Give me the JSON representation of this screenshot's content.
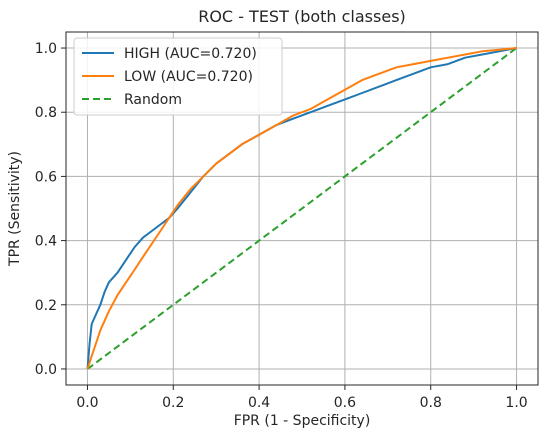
{
  "chart_data": {
    "type": "line",
    "title": "ROC - TEST (both classes)",
    "xlabel": "FPR (1 - Specificity)",
    "ylabel": "TPR (Sensitivity)",
    "xlim": [
      -0.05,
      1.05
    ],
    "ylim": [
      -0.05,
      1.05
    ],
    "xticks": [
      "0.0",
      "0.2",
      "0.4",
      "0.6",
      "0.8",
      "1.0"
    ],
    "yticks": [
      "0.0",
      "0.2",
      "0.4",
      "0.6",
      "0.8",
      "1.0"
    ],
    "grid": true,
    "legend_position": "top-left",
    "series": [
      {
        "name": "HIGH (AUC=0.720)",
        "color": "#1f77b4",
        "style": "solid",
        "x": [
          0,
          0.005,
          0.01,
          0.02,
          0.03,
          0.04,
          0.05,
          0.07,
          0.09,
          0.11,
          0.13,
          0.15,
          0.17,
          0.19,
          0.21,
          0.24,
          0.27,
          0.3,
          0.33,
          0.36,
          0.4,
          0.44,
          0.48,
          0.52,
          0.56,
          0.6,
          0.64,
          0.68,
          0.72,
          0.76,
          0.8,
          0.84,
          0.88,
          0.92,
          0.96,
          1.0
        ],
        "y": [
          0,
          0.08,
          0.14,
          0.17,
          0.2,
          0.24,
          0.27,
          0.3,
          0.34,
          0.38,
          0.41,
          0.43,
          0.45,
          0.47,
          0.5,
          0.55,
          0.6,
          0.64,
          0.67,
          0.7,
          0.73,
          0.76,
          0.78,
          0.8,
          0.82,
          0.84,
          0.86,
          0.88,
          0.9,
          0.92,
          0.94,
          0.95,
          0.97,
          0.98,
          0.99,
          1.0
        ]
      },
      {
        "name": "LOW (AUC=0.720)",
        "color": "#ff7f0e",
        "style": "solid",
        "x": [
          0,
          0.01,
          0.02,
          0.03,
          0.04,
          0.05,
          0.07,
          0.09,
          0.11,
          0.13,
          0.15,
          0.17,
          0.19,
          0.21,
          0.24,
          0.27,
          0.3,
          0.33,
          0.36,
          0.4,
          0.44,
          0.48,
          0.52,
          0.56,
          0.6,
          0.64,
          0.68,
          0.72,
          0.76,
          0.8,
          0.84,
          0.88,
          0.92,
          0.96,
          1.0
        ],
        "y": [
          0,
          0.04,
          0.08,
          0.12,
          0.15,
          0.18,
          0.23,
          0.27,
          0.31,
          0.35,
          0.39,
          0.43,
          0.47,
          0.51,
          0.56,
          0.6,
          0.64,
          0.67,
          0.7,
          0.73,
          0.76,
          0.79,
          0.81,
          0.84,
          0.87,
          0.9,
          0.92,
          0.94,
          0.95,
          0.96,
          0.97,
          0.98,
          0.99,
          0.995,
          1.0
        ]
      },
      {
        "name": "Random",
        "color": "#2ca02c",
        "style": "dashed",
        "x": [
          0,
          1
        ],
        "y": [
          0,
          1
        ]
      }
    ]
  }
}
